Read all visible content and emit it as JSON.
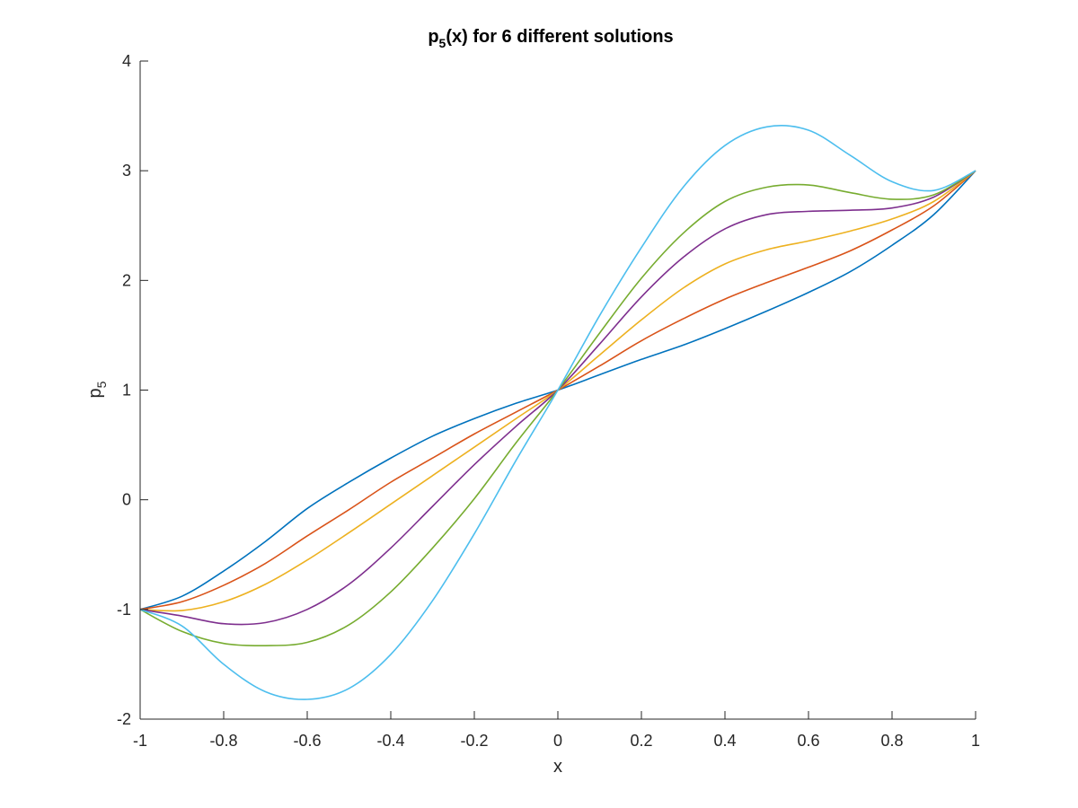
{
  "chart_data": {
    "type": "line",
    "title": "p5(x) for 6 different solutions",
    "title_parts": {
      "base": "p",
      "sub": "5",
      "rest": "(x) for 6 different solutions"
    },
    "xlabel": "x",
    "ylabel_parts": {
      "base": "p",
      "sub": "5"
    },
    "xlim": [
      -1,
      1
    ],
    "ylim": [
      -2,
      4
    ],
    "xticks": [
      -1,
      -0.8,
      -0.6,
      -0.4,
      -0.2,
      0,
      0.2,
      0.4,
      0.6,
      0.8,
      1
    ],
    "xtick_labels": [
      "-1",
      "-0.8",
      "-0.6",
      "-0.4",
      "-0.2",
      "0",
      "0.2",
      "0.4",
      "0.6",
      "0.8",
      "1"
    ],
    "yticks": [
      -2,
      -1,
      0,
      1,
      2,
      3,
      4
    ],
    "ytick_labels": [
      "-2",
      "-1",
      "0",
      "1",
      "2",
      "3",
      "4"
    ],
    "grid": false,
    "box": "left-bottom axes only",
    "x": [
      -1,
      -0.9,
      -0.8,
      -0.7,
      -0.6,
      -0.5,
      -0.4,
      -0.3,
      -0.2,
      -0.1,
      0,
      0.1,
      0.2,
      0.3,
      0.4,
      0.5,
      0.6,
      0.7,
      0.8,
      0.9,
      1
    ],
    "series": [
      {
        "color": "#0072BD",
        "values": [
          -1,
          -0.88,
          -0.65,
          -0.38,
          -0.08,
          0.16,
          0.38,
          0.58,
          0.74,
          0.88,
          1,
          1.14,
          1.28,
          1.41,
          1.56,
          1.72,
          1.89,
          2.08,
          2.32,
          2.6,
          3
        ]
      },
      {
        "color": "#D95319",
        "values": [
          -1,
          -0.93,
          -0.78,
          -0.58,
          -0.33,
          -0.09,
          0.16,
          0.38,
          0.6,
          0.8,
          1,
          1.22,
          1.45,
          1.65,
          1.83,
          1.98,
          2.12,
          2.27,
          2.46,
          2.68,
          3
        ]
      },
      {
        "color": "#EDB120",
        "values": [
          -1,
          -1.01,
          -0.93,
          -0.77,
          -0.55,
          -0.3,
          -0.04,
          0.22,
          0.48,
          0.74,
          1,
          1.32,
          1.64,
          1.93,
          2.15,
          2.28,
          2.36,
          2.45,
          2.56,
          2.72,
          3
        ]
      },
      {
        "color": "#7E2F8E",
        "values": [
          -1,
          -1.06,
          -1.13,
          -1.12,
          -1.0,
          -0.77,
          -0.44,
          -0.06,
          0.32,
          0.67,
          1,
          1.42,
          1.85,
          2.21,
          2.47,
          2.6,
          2.63,
          2.64,
          2.66,
          2.76,
          3
        ]
      },
      {
        "color": "#77AC30",
        "values": [
          -1,
          -1.2,
          -1.31,
          -1.33,
          -1.3,
          -1.14,
          -0.84,
          -0.44,
          0.01,
          0.52,
          1,
          1.52,
          2.02,
          2.43,
          2.72,
          2.85,
          2.87,
          2.8,
          2.74,
          2.78,
          3
        ]
      },
      {
        "color": "#4DBEEE",
        "values": [
          -1,
          -1.15,
          -1.5,
          -1.75,
          -1.82,
          -1.72,
          -1.41,
          -0.92,
          -0.31,
          0.36,
          1,
          1.68,
          2.3,
          2.85,
          3.23,
          3.4,
          3.37,
          3.14,
          2.9,
          2.82,
          3
        ]
      }
    ]
  }
}
